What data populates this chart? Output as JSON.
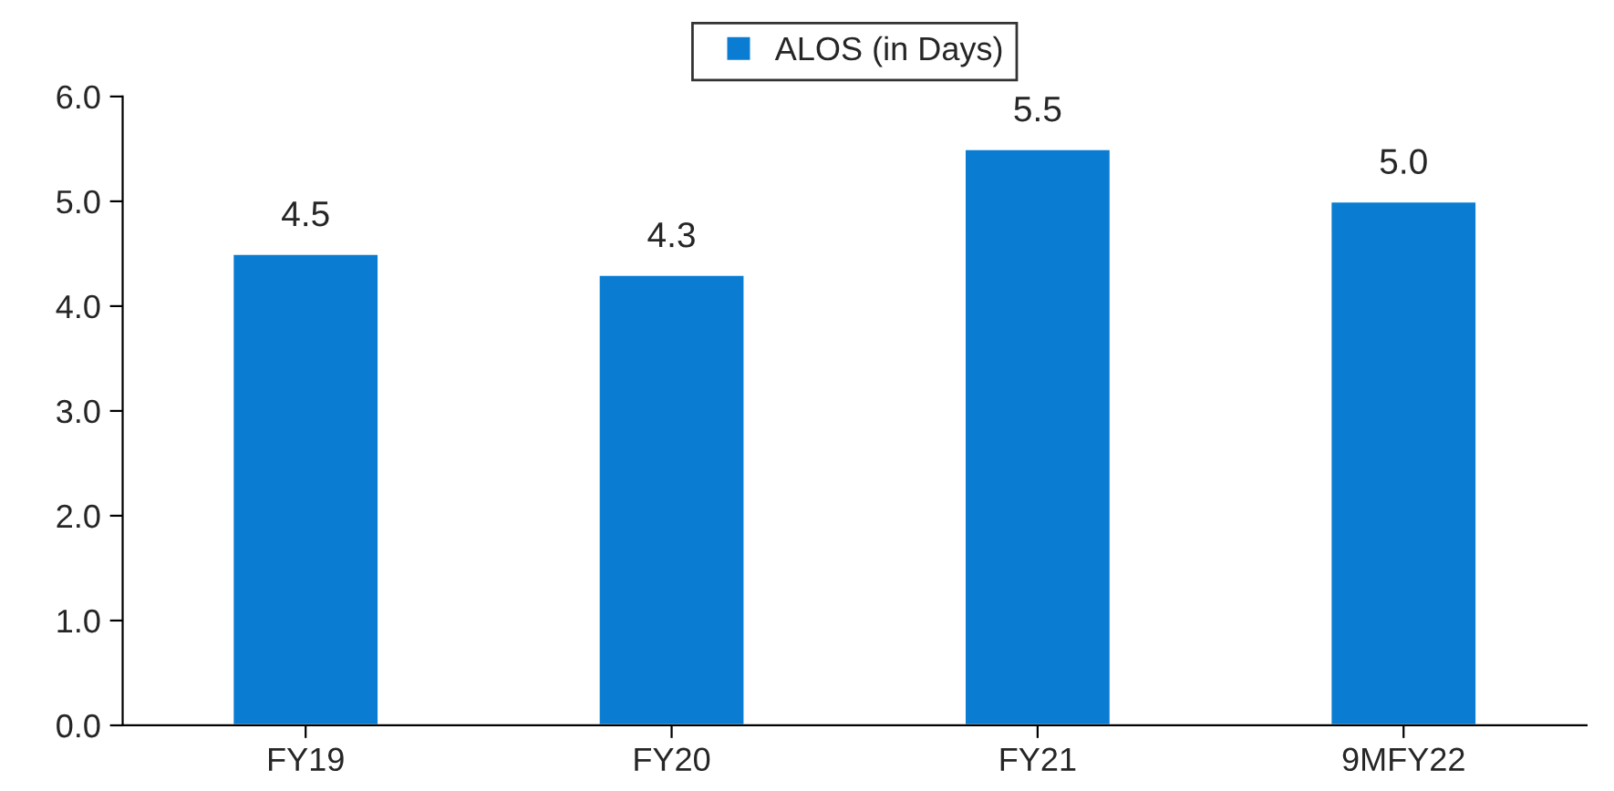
{
  "chart_data": {
    "type": "bar",
    "categories": [
      "FY19",
      "FY20",
      "FY21",
      "9MFY22"
    ],
    "series": [
      {
        "name": "ALOS (in Days)",
        "color": "#0a7dd3",
        "values": [
          4.5,
          4.3,
          5.5,
          5.0
        ],
        "value_labels": [
          "4.5",
          "4.3",
          "5.5",
          "5.0"
        ]
      }
    ],
    "ylim": [
      0,
      6
    ],
    "yticks": [
      {
        "value": 0,
        "label": "0.0"
      },
      {
        "value": 1,
        "label": "1.0"
      },
      {
        "value": 2,
        "label": "2.0"
      },
      {
        "value": 3,
        "label": "3.0"
      },
      {
        "value": 4,
        "label": "4.0"
      },
      {
        "value": 5,
        "label": "5.0"
      },
      {
        "value": 6,
        "label": "6.0"
      }
    ],
    "legend": "top",
    "grid": false
  }
}
